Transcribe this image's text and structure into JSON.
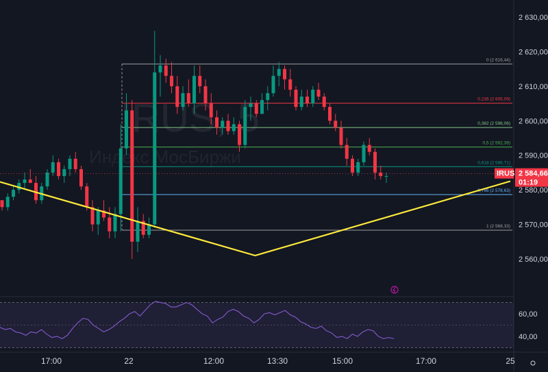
{
  "chart_data": {
    "type": "candlestick",
    "watermark": {
      "symbol": "IRUS, 5",
      "exchange": "Индекс МосБиржи"
    },
    "y_axis": {
      "ticks": [
        "2 630,00",
        "2 620,00",
        "2 610,00",
        "2 600,00",
        "2 590,00",
        "2 580,00",
        "2 570,00",
        "2 560,00"
      ],
      "ylim": [
        2555,
        2633
      ]
    },
    "x_axis": {
      "ticks": [
        "17:00",
        "22",
        "12:00",
        "13:30",
        "15:00",
        "17:00",
        "25"
      ]
    },
    "current_price": {
      "symbol": "IRUS",
      "price": "2 584,66",
      "countdown": "01:19",
      "value": 2584.66
    },
    "fib_levels": [
      {
        "label": "0 (2 616,44)",
        "value": 2616.44,
        "color": "#9e9e9e"
      },
      {
        "label": "0,236 (2 605,09)",
        "value": 2605.09,
        "color": "#f23645"
      },
      {
        "label": "0,382 (2 598,06)",
        "value": 2598.06,
        "color": "#81c784"
      },
      {
        "label": "0,5 (2 592,39)",
        "value": 2592.39,
        "color": "#4caf50"
      },
      {
        "label": "0,618 (2 586,71)",
        "value": 2586.71,
        "color": "#089981"
      },
      {
        "label": "0,786 (2 578,63)",
        "value": 2578.63,
        "color": "#64b5f6"
      },
      {
        "label": "1 (2 568,33)",
        "value": 2568.33,
        "color": "#9e9e9e"
      }
    ],
    "trendline_points": [
      [
        2582.3,
        0
      ],
      [
        2561.0,
        0.5
      ],
      [
        2582.5,
        1
      ]
    ],
    "candles": [
      [
        2577,
        2577,
        2574,
        2575
      ],
      [
        2575,
        2579,
        2574,
        2578
      ],
      [
        2578,
        2581,
        2577,
        2580
      ],
      [
        2580,
        2583,
        2579,
        2582
      ],
      [
        2582,
        2585,
        2580,
        2583
      ],
      [
        2583,
        2586,
        2582,
        2582
      ],
      [
        2582,
        2584,
        2576,
        2577
      ],
      [
        2577,
        2582,
        2576,
        2581
      ],
      [
        2581,
        2586,
        2580,
        2585
      ],
      [
        2585,
        2590,
        2584,
        2588
      ],
      [
        2588,
        2589,
        2583,
        2584
      ],
      [
        2584,
        2587,
        2582,
        2586
      ],
      [
        2586,
        2590,
        2584,
        2589
      ],
      [
        2589,
        2591,
        2585,
        2586
      ],
      [
        2586,
        2587,
        2580,
        2581
      ],
      [
        2581,
        2582,
        2574,
        2575
      ],
      [
        2575,
        2577,
        2568,
        2570
      ],
      [
        2570,
        2575,
        2567,
        2574
      ],
      [
        2574,
        2577,
        2571,
        2572
      ],
      [
        2572,
        2575,
        2566,
        2568
      ],
      [
        2568,
        2575,
        2566,
        2573
      ],
      [
        2573,
        2599,
        2568,
        2592
      ],
      [
        2592,
        2608,
        2590,
        2603
      ],
      [
        2603,
        2606,
        2560,
        2565
      ],
      [
        2565,
        2575,
        2562,
        2571
      ],
      [
        2571,
        2573,
        2566,
        2567
      ],
      [
        2567,
        2572,
        2566,
        2570
      ],
      [
        2570,
        2626,
        2569,
        2614
      ],
      [
        2614,
        2619,
        2607,
        2616
      ],
      [
        2616,
        2618,
        2611,
        2613
      ],
      [
        2613,
        2617,
        2608,
        2610
      ],
      [
        2610,
        2613,
        2602,
        2604
      ],
      [
        2604,
        2610,
        2603,
        2608
      ],
      [
        2608,
        2612,
        2604,
        2605
      ],
      [
        2605,
        2616,
        2602,
        2613
      ],
      [
        2613,
        2616,
        2608,
        2610
      ],
      [
        2610,
        2612,
        2603,
        2605
      ],
      [
        2605,
        2608,
        2599,
        2601
      ],
      [
        2601,
        2603,
        2596,
        2598
      ],
      [
        2598,
        2601,
        2596,
        2600
      ],
      [
        2600,
        2602,
        2596,
        2597
      ],
      [
        2597,
        2601,
        2596,
        2599
      ],
      [
        2599,
        2600,
        2591,
        2593
      ],
      [
        2593,
        2606,
        2592,
        2604
      ],
      [
        2604,
        2607,
        2600,
        2605
      ],
      [
        2605,
        2606,
        2601,
        2602
      ],
      [
        2602,
        2608,
        2602,
        2606
      ],
      [
        2606,
        2610,
        2603,
        2608
      ],
      [
        2608,
        2616,
        2607,
        2613
      ],
      [
        2613,
        2617,
        2610,
        2615
      ],
      [
        2615,
        2616,
        2609,
        2612
      ],
      [
        2612,
        2615,
        2607,
        2609
      ],
      [
        2609,
        2610,
        2603,
        2604
      ],
      [
        2604,
        2609,
        2603,
        2607
      ],
      [
        2607,
        2609,
        2604,
        2605
      ],
      [
        2605,
        2610,
        2604,
        2609
      ],
      [
        2609,
        2611,
        2606,
        2607
      ],
      [
        2607,
        2608,
        2603,
        2604
      ],
      [
        2604,
        2605,
        2599,
        2600
      ],
      [
        2600,
        2602,
        2597,
        2598
      ],
      [
        2598,
        2600,
        2592,
        2593
      ],
      [
        2593,
        2595,
        2587,
        2589
      ],
      [
        2589,
        2590,
        2584,
        2585
      ],
      [
        2585,
        2589,
        2584,
        2588
      ],
      [
        2588,
        2594,
        2587,
        2593
      ],
      [
        2593,
        2595,
        2590,
        2591
      ],
      [
        2591,
        2592,
        2583,
        2585
      ],
      [
        2585,
        2587,
        2583,
        2584
      ],
      [
        2584,
        2585,
        2582,
        2584
      ]
    ],
    "rsi": {
      "ticks": [
        "60,00",
        "40,00"
      ],
      "ylim": [
        20,
        80
      ],
      "values": [
        48,
        46,
        47,
        44,
        43,
        41,
        44,
        43,
        46,
        42,
        39,
        40,
        38,
        41,
        47,
        52,
        56,
        55,
        50,
        47,
        44,
        46,
        49,
        53,
        56,
        60,
        62,
        58,
        63,
        68,
        71,
        70,
        69,
        66,
        66,
        68,
        70,
        68,
        64,
        60,
        58,
        52,
        55,
        57,
        62,
        64,
        62,
        58,
        56,
        52,
        55,
        60,
        61,
        59,
        61,
        63,
        59,
        57,
        53,
        51,
        48,
        47,
        49,
        45,
        43,
        39,
        40,
        38,
        42,
        40,
        44,
        46,
        45,
        40,
        38,
        39,
        38
      ]
    }
  }
}
